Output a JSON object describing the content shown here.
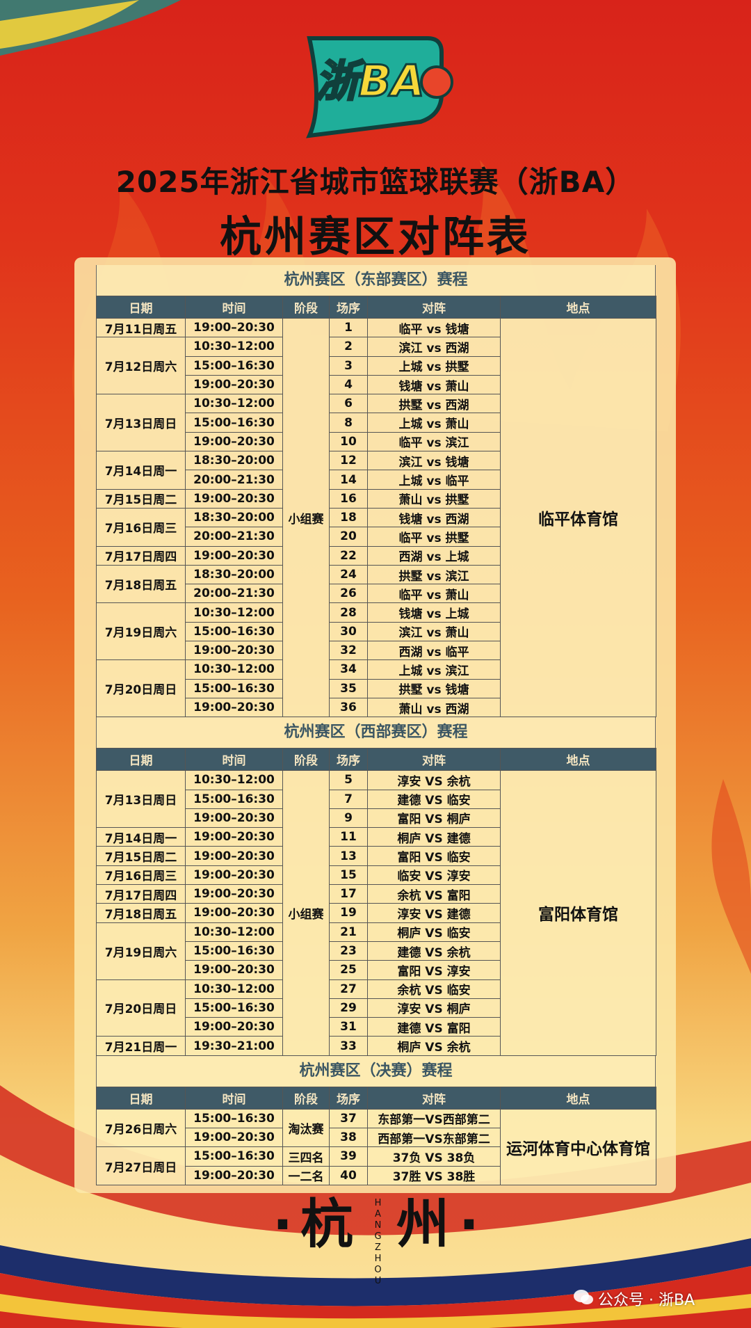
{
  "logo": {
    "text": "浙BA"
  },
  "title": "2025年浙江省城市篮球联赛（浙BA）",
  "subtitle": "杭州赛区对阵表",
  "table_headers": [
    "日期",
    "时间",
    "阶段",
    "场序",
    "对阵",
    "地点"
  ],
  "sections": [
    {
      "title": "杭州赛区（东部赛区）赛程",
      "stage": "小组赛",
      "venue": "临平体育馆",
      "dates": [
        {
          "date": "7月11日周五",
          "games": [
            {
              "time": "19:00–20:30",
              "no": 1,
              "match": "临平 vs 钱塘"
            }
          ]
        },
        {
          "date": "7月12日周六",
          "games": [
            {
              "time": "10:30–12:00",
              "no": 2,
              "match": "滨江 vs 西湖"
            },
            {
              "time": "15:00–16:30",
              "no": 3,
              "match": "上城 vs 拱墅"
            },
            {
              "time": "19:00–20:30",
              "no": 4,
              "match": "钱塘 vs 萧山"
            }
          ]
        },
        {
          "date": "7月13日周日",
          "games": [
            {
              "time": "10:30–12:00",
              "no": 6,
              "match": "拱墅 vs 西湖"
            },
            {
              "time": "15:00–16:30",
              "no": 8,
              "match": "上城 vs 萧山"
            },
            {
              "time": "19:00–20:30",
              "no": 10,
              "match": "临平 vs 滨江"
            }
          ]
        },
        {
          "date": "7月14日周一",
          "games": [
            {
              "time": "18:30–20:00",
              "no": 12,
              "match": "滨江 vs 钱塘"
            },
            {
              "time": "20:00–21:30",
              "no": 14,
              "match": "上城 vs 临平"
            }
          ]
        },
        {
          "date": "7月15日周二",
          "games": [
            {
              "time": "19:00–20:30",
              "no": 16,
              "match": "萧山 vs 拱墅"
            }
          ]
        },
        {
          "date": "7月16日周三",
          "games": [
            {
              "time": "18:30–20:00",
              "no": 18,
              "match": "钱塘 vs 西湖"
            },
            {
              "time": "20:00–21:30",
              "no": 20,
              "match": "临平 vs 拱墅"
            }
          ]
        },
        {
          "date": "7月17日周四",
          "games": [
            {
              "time": "19:00–20:30",
              "no": 22,
              "match": "西湖 vs 上城"
            }
          ]
        },
        {
          "date": "7月18日周五",
          "games": [
            {
              "time": "18:30–20:00",
              "no": 24,
              "match": "拱墅 vs 滨江"
            },
            {
              "time": "20:00–21:30",
              "no": 26,
              "match": "临平 vs 萧山"
            }
          ]
        },
        {
          "date": "7月19日周六",
          "games": [
            {
              "time": "10:30–12:00",
              "no": 28,
              "match": "钱塘 vs 上城"
            },
            {
              "time": "15:00–16:30",
              "no": 30,
              "match": "滨江 vs 萧山"
            },
            {
              "time": "19:00–20:30",
              "no": 32,
              "match": "西湖 vs 临平"
            }
          ]
        },
        {
          "date": "7月20日周日",
          "games": [
            {
              "time": "10:30–12:00",
              "no": 34,
              "match": "上城 vs 滨江"
            },
            {
              "time": "15:00–16:30",
              "no": 35,
              "match": "拱墅 vs 钱塘"
            },
            {
              "time": "19:00–20:30",
              "no": 36,
              "match": "萧山 vs 西湖"
            }
          ]
        }
      ]
    },
    {
      "title": "杭州赛区（西部赛区）赛程",
      "stage": "小组赛",
      "venue": "富阳体育馆",
      "dates": [
        {
          "date": "7月13日周日",
          "games": [
            {
              "time": "10:30–12:00",
              "no": 5,
              "match": "淳安 VS 余杭"
            },
            {
              "time": "15:00–16:30",
              "no": 7,
              "match": "建德 VS 临安"
            },
            {
              "time": "19:00–20:30",
              "no": 9,
              "match": "富阳 VS 桐庐"
            }
          ]
        },
        {
          "date": "7月14日周一",
          "games": [
            {
              "time": "19:00–20:30",
              "no": 11,
              "match": "桐庐 VS 建德"
            }
          ]
        },
        {
          "date": "7月15日周二",
          "games": [
            {
              "time": "19:00–20:30",
              "no": 13,
              "match": "富阳 VS 临安"
            }
          ]
        },
        {
          "date": "7月16日周三",
          "games": [
            {
              "time": "19:00–20:30",
              "no": 15,
              "match": "临安 VS 淳安"
            }
          ]
        },
        {
          "date": "7月17日周四",
          "games": [
            {
              "time": "19:00–20:30",
              "no": 17,
              "match": "余杭 VS 富阳"
            }
          ]
        },
        {
          "date": "7月18日周五",
          "games": [
            {
              "time": "19:00–20:30",
              "no": 19,
              "match": "淳安 VS 建德"
            }
          ]
        },
        {
          "date": "7月19日周六",
          "games": [
            {
              "time": "10:30–12:00",
              "no": 21,
              "match": "桐庐 VS 临安"
            },
            {
              "time": "15:00–16:30",
              "no": 23,
              "match": "建德 VS 余杭"
            },
            {
              "time": "19:00–20:30",
              "no": 25,
              "match": "富阳 VS 淳安"
            }
          ]
        },
        {
          "date": "7月20日周日",
          "games": [
            {
              "time": "10:30–12:00",
              "no": 27,
              "match": "余杭 VS 临安"
            },
            {
              "time": "15:00–16:30",
              "no": 29,
              "match": "淳安 VS 桐庐"
            },
            {
              "time": "19:00–20:30",
              "no": 31,
              "match": "建德 VS 富阳"
            }
          ]
        },
        {
          "date": "7月21日周一",
          "games": [
            {
              "time": "19:30–21:00",
              "no": 33,
              "match": "桐庐 VS 余杭"
            }
          ]
        }
      ]
    },
    {
      "title": "杭州赛区（决赛）赛程",
      "venue": "运河体育中心体育馆",
      "dates": [
        {
          "date": "7月26日周六",
          "stage": "淘汰赛",
          "games": [
            {
              "time": "15:00–16:30",
              "no": 37,
              "match": "东部第一VS西部第二"
            },
            {
              "time": "19:00–20:30",
              "no": 38,
              "match": "西部第一VS东部第二"
            }
          ]
        },
        {
          "date": "7月27日周日",
          "games": [
            {
              "time": "15:00–16:30",
              "stage": "三四名",
              "no": 39,
              "match": "37负 VS 38负"
            },
            {
              "time": "19:00–20:30",
              "stage": "一二名",
              "no": 40,
              "match": "37胜 VS 38胜"
            }
          ]
        }
      ]
    }
  ],
  "footer": {
    "dot": "·",
    "city_1": "杭",
    "pinyin": "HANGZHOU",
    "city_2": "州"
  },
  "watermark": "公众号 · 浙BA"
}
